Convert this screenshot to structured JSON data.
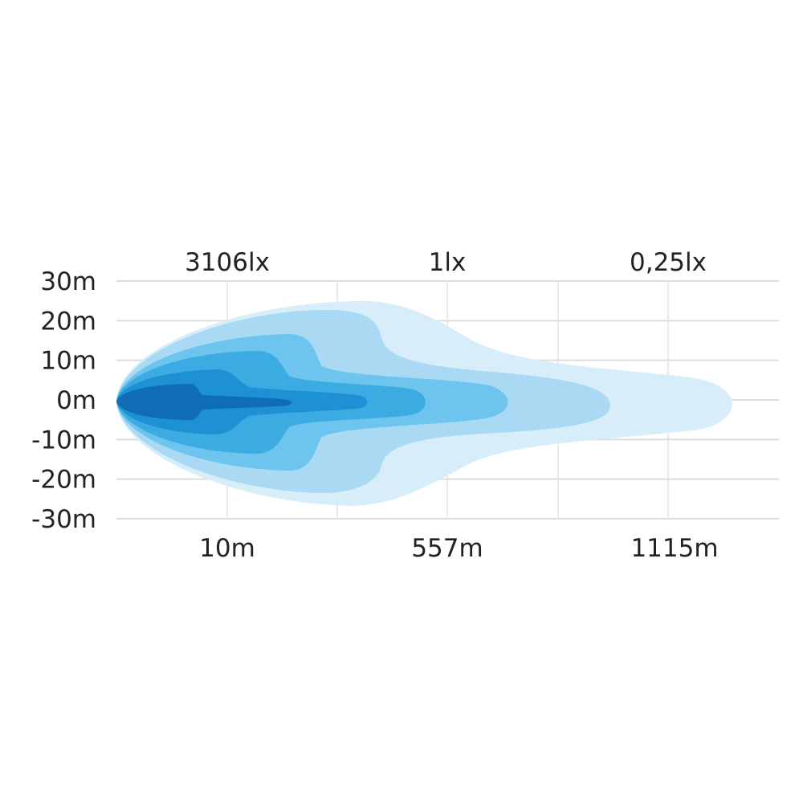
{
  "chart_data": {
    "type": "area",
    "description_free": true,
    "top_labels": [
      "3106lx",
      "1lx",
      "0,25lx"
    ],
    "x_tick_labels": [
      "10m",
      "557m",
      "1115m"
    ],
    "y_tick_labels": [
      "30m",
      "20m",
      "10m",
      "0m",
      "-10m",
      "-20m",
      "-30m"
    ],
    "y_values": [
      30,
      20,
      10,
      0,
      -10,
      -20,
      -30
    ],
    "ylim": [
      -30,
      30
    ],
    "grid": true,
    "layer_colors": [
      "#d7edf9",
      "#a9d9f3",
      "#6dc4ee",
      "#3babe2",
      "#1e91d4",
      "#0f6db5"
    ]
  }
}
